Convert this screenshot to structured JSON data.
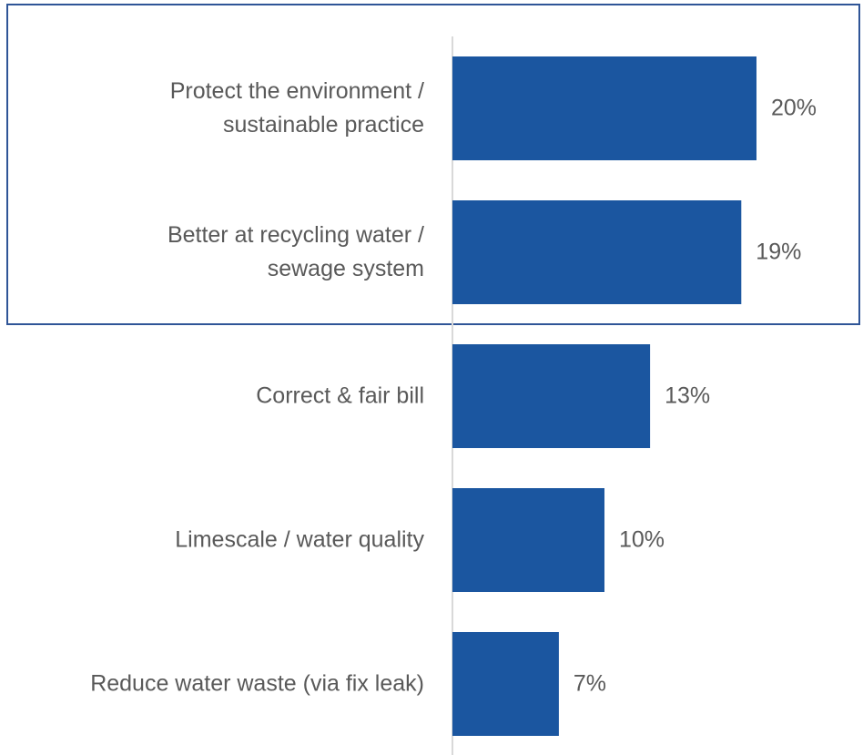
{
  "chart_data": {
    "type": "bar",
    "orientation": "horizontal",
    "categories": [
      "Protect the environment /\nsustainable practice",
      "Better at recycling water /\nsewage system",
      "Correct & fair bill",
      "Limescale / water quality",
      "Reduce water waste (via fix leak)"
    ],
    "values": [
      20,
      19,
      13,
      10,
      7
    ],
    "value_labels": [
      "20%",
      "19%",
      "13%",
      "10%",
      "7%"
    ],
    "color": "#1b56a0"
  }
}
